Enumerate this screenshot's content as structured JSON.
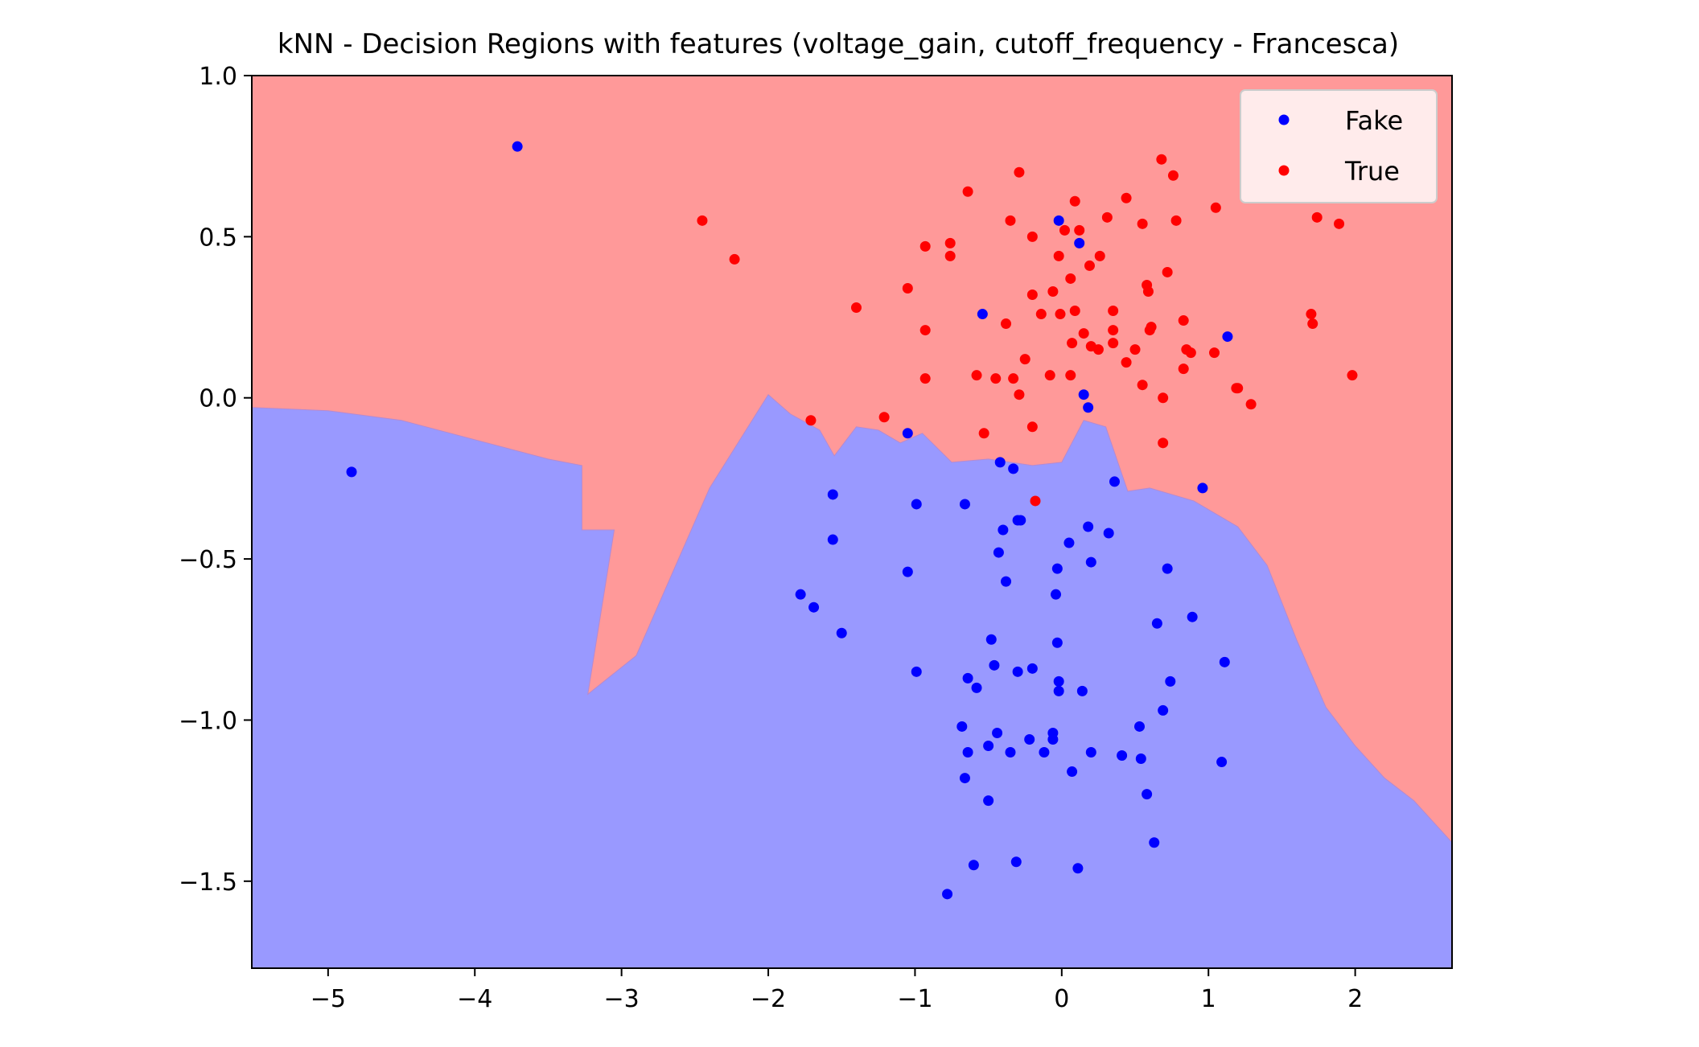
{
  "chart_data": {
    "type": "scatter",
    "title": "kNN - Decision Regions with features (voltage_gain, cutoff_frequency - Francesca)",
    "xlabel": "",
    "ylabel": "",
    "xlim": [
      -5.52,
      2.66
    ],
    "ylim": [
      -1.77,
      1.0
    ],
    "xticks": [
      -5,
      -4,
      -3,
      -2,
      -1,
      0,
      1,
      2
    ],
    "xtick_labels": [
      "−5",
      "−4",
      "−3",
      "−2",
      "−1",
      "0",
      "1",
      "2"
    ],
    "yticks": [
      1.0,
      0.5,
      0.0,
      -0.5,
      -1.0,
      -1.5
    ],
    "ytick_labels": [
      "1.0",
      "0.5",
      "0.0",
      "−0.5",
      "−1.0",
      "−1.5"
    ],
    "grid": false,
    "legend_position": "top-right",
    "region_colors": {
      "Fake": "#9999ff",
      "True": "#ff9999"
    },
    "decision_boundary": [
      [
        -5.52,
        -0.03
      ],
      [
        -5.0,
        -0.04
      ],
      [
        -4.5,
        -0.07
      ],
      [
        -4.0,
        -0.13
      ],
      [
        -3.5,
        -0.19
      ],
      [
        -3.27,
        -0.21
      ],
      [
        -3.27,
        -0.41
      ],
      [
        -3.05,
        -0.41
      ],
      [
        -3.23,
        -0.92
      ],
      [
        -2.9,
        -0.8
      ],
      [
        -2.4,
        -0.28
      ],
      [
        -2.0,
        0.01
      ],
      [
        -1.85,
        -0.05
      ],
      [
        -1.65,
        -0.1
      ],
      [
        -1.55,
        -0.18
      ],
      [
        -1.4,
        -0.09
      ],
      [
        -1.25,
        -0.1
      ],
      [
        -1.1,
        -0.14
      ],
      [
        -0.95,
        -0.11
      ],
      [
        -0.75,
        -0.2
      ],
      [
        -0.5,
        -0.19
      ],
      [
        -0.2,
        -0.21
      ],
      [
        0.0,
        -0.2
      ],
      [
        0.15,
        -0.07
      ],
      [
        0.3,
        -0.09
      ],
      [
        0.45,
        -0.29
      ],
      [
        0.6,
        -0.28
      ],
      [
        0.9,
        -0.32
      ],
      [
        1.2,
        -0.4
      ],
      [
        1.4,
        -0.52
      ],
      [
        1.6,
        -0.75
      ],
      [
        1.8,
        -0.96
      ],
      [
        2.0,
        -1.08
      ],
      [
        2.2,
        -1.18
      ],
      [
        2.4,
        -1.25
      ],
      [
        2.66,
        -1.38
      ]
    ],
    "series": [
      {
        "name": "Fake",
        "color": "#0000ff",
        "points": [
          [
            -4.84,
            -0.23
          ],
          [
            -3.71,
            0.78
          ],
          [
            -1.56,
            -0.3
          ],
          [
            -1.56,
            -0.44
          ],
          [
            -1.78,
            -0.61
          ],
          [
            -1.69,
            -0.65
          ],
          [
            -1.5,
            -0.73
          ],
          [
            -1.05,
            -0.11
          ],
          [
            -1.05,
            -0.54
          ],
          [
            -0.99,
            -0.33
          ],
          [
            -0.99,
            -0.85
          ],
          [
            -0.66,
            -0.33
          ],
          [
            -0.42,
            -0.2
          ],
          [
            -0.33,
            -0.22
          ],
          [
            -0.4,
            -0.41
          ],
          [
            -0.3,
            -0.38
          ],
          [
            -0.28,
            -0.38
          ],
          [
            -0.43,
            -0.48
          ],
          [
            -0.38,
            -0.57
          ],
          [
            -0.54,
            0.26
          ],
          [
            -0.02,
            0.55
          ],
          [
            0.12,
            0.48
          ],
          [
            0.15,
            0.01
          ],
          [
            0.18,
            -0.03
          ],
          [
            0.36,
            -0.26
          ],
          [
            0.96,
            -0.28
          ],
          [
            1.13,
            0.19
          ],
          [
            0.05,
            -0.45
          ],
          [
            0.18,
            -0.4
          ],
          [
            0.32,
            -0.42
          ],
          [
            -0.03,
            -0.53
          ],
          [
            0.2,
            -0.51
          ],
          [
            0.72,
            -0.53
          ],
          [
            -0.04,
            -0.61
          ],
          [
            0.65,
            -0.7
          ],
          [
            0.89,
            -0.68
          ],
          [
            -0.48,
            -0.75
          ],
          [
            -0.03,
            -0.76
          ],
          [
            1.11,
            -0.82
          ],
          [
            -0.46,
            -0.83
          ],
          [
            -0.2,
            -0.84
          ],
          [
            -0.3,
            -0.85
          ],
          [
            -0.64,
            -0.87
          ],
          [
            -0.58,
            -0.9
          ],
          [
            -0.02,
            -0.88
          ],
          [
            0.14,
            -0.91
          ],
          [
            -0.02,
            -0.91
          ],
          [
            0.74,
            -0.88
          ],
          [
            0.69,
            -0.97
          ],
          [
            -0.68,
            -1.02
          ],
          [
            0.53,
            -1.02
          ],
          [
            -0.06,
            -1.04
          ],
          [
            -0.44,
            -1.04
          ],
          [
            -0.22,
            -1.06
          ],
          [
            -0.06,
            -1.06
          ],
          [
            -0.5,
            -1.08
          ],
          [
            -0.64,
            -1.1
          ],
          [
            -0.35,
            -1.1
          ],
          [
            -0.12,
            -1.1
          ],
          [
            0.2,
            -1.1
          ],
          [
            0.41,
            -1.11
          ],
          [
            0.54,
            -1.12
          ],
          [
            1.09,
            -1.13
          ],
          [
            0.07,
            -1.16
          ],
          [
            -0.66,
            -1.18
          ],
          [
            -0.5,
            -1.25
          ],
          [
            0.58,
            -1.23
          ],
          [
            0.63,
            -1.38
          ],
          [
            -0.6,
            -1.45
          ],
          [
            -0.31,
            -1.44
          ],
          [
            0.11,
            -1.46
          ],
          [
            -0.78,
            -1.54
          ]
        ]
      },
      {
        "name": "True",
        "color": "#ff0000",
        "points": [
          [
            -2.45,
            0.55
          ],
          [
            -2.23,
            0.43
          ],
          [
            -1.4,
            0.28
          ],
          [
            -1.71,
            -0.07
          ],
          [
            -1.21,
            -0.06
          ],
          [
            -1.05,
            0.34
          ],
          [
            -0.93,
            0.21
          ],
          [
            -0.93,
            0.06
          ],
          [
            -0.93,
            0.47
          ],
          [
            -0.76,
            0.48
          ],
          [
            -0.76,
            0.44
          ],
          [
            -0.64,
            0.64
          ],
          [
            -0.58,
            0.07
          ],
          [
            -0.53,
            -0.11
          ],
          [
            -0.45,
            0.06
          ],
          [
            -0.38,
            0.23
          ],
          [
            -0.35,
            0.55
          ],
          [
            -0.33,
            0.06
          ],
          [
            -0.29,
            0.7
          ],
          [
            -0.29,
            0.01
          ],
          [
            -0.25,
            0.12
          ],
          [
            -0.2,
            0.5
          ],
          [
            -0.2,
            0.32
          ],
          [
            -0.2,
            -0.09
          ],
          [
            -0.18,
            -0.32
          ],
          [
            -0.14,
            0.26
          ],
          [
            -0.08,
            0.07
          ],
          [
            -0.06,
            0.33
          ],
          [
            -0.02,
            0.44
          ],
          [
            -0.01,
            0.26
          ],
          [
            0.02,
            0.52
          ],
          [
            0.06,
            0.37
          ],
          [
            0.06,
            0.07
          ],
          [
            0.07,
            0.17
          ],
          [
            0.09,
            0.61
          ],
          [
            0.09,
            0.27
          ],
          [
            0.12,
            0.52
          ],
          [
            0.15,
            0.2
          ],
          [
            0.19,
            0.41
          ],
          [
            0.2,
            0.16
          ],
          [
            0.26,
            0.44
          ],
          [
            0.25,
            0.15
          ],
          [
            0.31,
            0.56
          ],
          [
            0.35,
            0.21
          ],
          [
            0.35,
            0.17
          ],
          [
            0.35,
            0.27
          ],
          [
            0.44,
            0.62
          ],
          [
            0.44,
            0.11
          ],
          [
            0.5,
            0.15
          ],
          [
            0.55,
            0.04
          ],
          [
            0.55,
            0.54
          ],
          [
            0.59,
            0.33
          ],
          [
            0.58,
            0.35
          ],
          [
            0.6,
            0.21
          ],
          [
            0.61,
            0.22
          ],
          [
            0.68,
            0.74
          ],
          [
            0.69,
            0.0
          ],
          [
            0.69,
            -0.14
          ],
          [
            0.72,
            0.39
          ],
          [
            0.76,
            0.69
          ],
          [
            0.78,
            0.55
          ],
          [
            0.83,
            0.09
          ],
          [
            0.83,
            0.24
          ],
          [
            0.85,
            0.15
          ],
          [
            0.88,
            0.14
          ],
          [
            1.04,
            0.14
          ],
          [
            1.05,
            0.59
          ],
          [
            1.19,
            0.03
          ],
          [
            1.2,
            0.03
          ],
          [
            1.29,
            -0.02
          ],
          [
            1.7,
            0.26
          ],
          [
            1.71,
            0.23
          ],
          [
            1.74,
            0.56
          ],
          [
            1.89,
            0.54
          ],
          [
            1.98,
            0.07
          ]
        ]
      }
    ]
  }
}
